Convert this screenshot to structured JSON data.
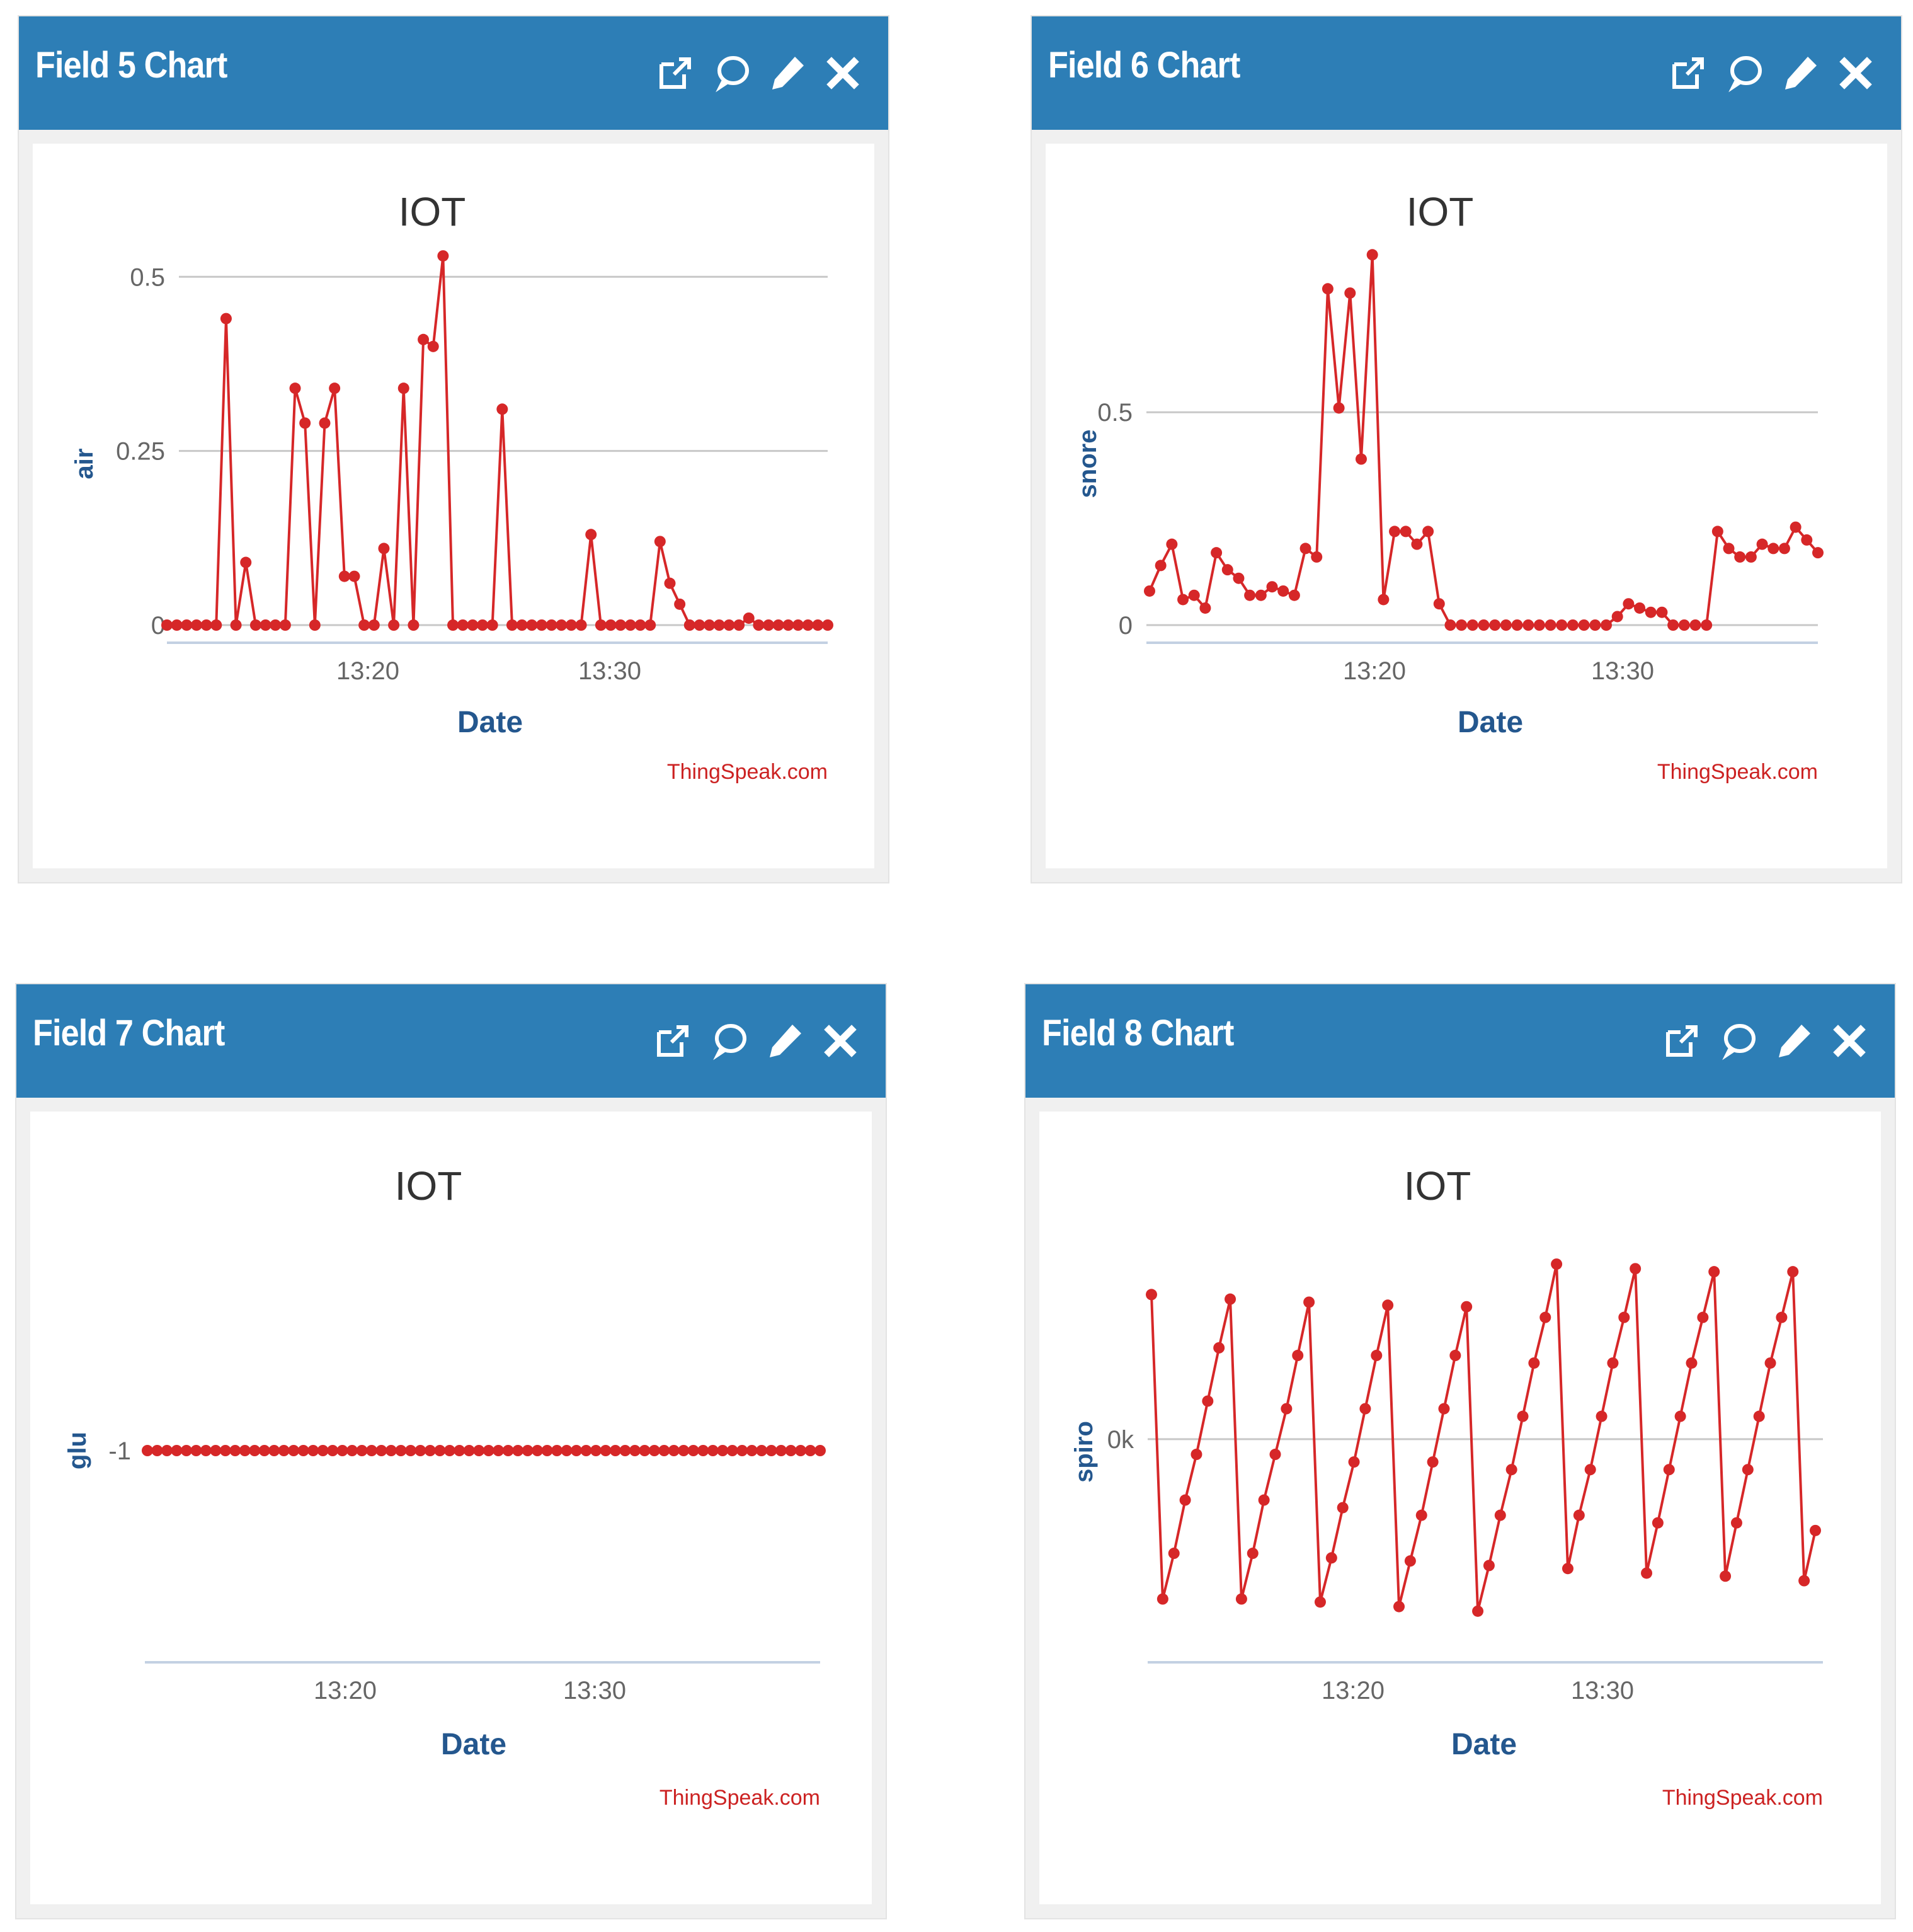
{
  "colors": {
    "header": "#2d7eb6",
    "series": "#d62728",
    "axis_label": "#24578e",
    "credit": "#cc2222"
  },
  "header_icons": [
    "external-link-icon",
    "comment-icon",
    "pencil-icon",
    "close-icon"
  ],
  "panels": [
    {
      "title": "Field 5 Chart",
      "chart_data": {
        "type": "line",
        "title": "IOT",
        "xlabel": "Date",
        "ylabel": "air",
        "credit": "ThingSpeak.com",
        "x_ticks": [
          "13:20",
          "13:30"
        ],
        "y_ticks": [
          "0",
          "0.25",
          "0.5"
        ],
        "ylim": [
          0,
          0.55
        ],
        "grid": true,
        "legend": "none",
        "series": [
          {
            "values": [
              0,
              0,
              0,
              0,
              0,
              0,
              0.44,
              0,
              0.09,
              0,
              0,
              0,
              0,
              0.34,
              0.29,
              0,
              0.29,
              0.34,
              0.07,
              0.07,
              0,
              0,
              0.11,
              0,
              0.34,
              0,
              0.41,
              0.4,
              0.53,
              0,
              0,
              0,
              0,
              0,
              0.31,
              0,
              0,
              0,
              0,
              0,
              0,
              0,
              0,
              0.13,
              0,
              0,
              0,
              0,
              0,
              0,
              0.12,
              0.06,
              0.03,
              0,
              0,
              0,
              0,
              0,
              0,
              0.01,
              0,
              0,
              0,
              0,
              0,
              0,
              0,
              0
            ]
          }
        ]
      }
    },
    {
      "title": "Field 6 Chart",
      "chart_data": {
        "type": "line",
        "title": "IOT",
        "xlabel": "Date",
        "ylabel": "snore",
        "credit": "ThingSpeak.com",
        "x_ticks": [
          "13:20",
          "13:30"
        ],
        "y_ticks": [
          "0",
          "0.5"
        ],
        "ylim": [
          0,
          0.9
        ],
        "grid": true,
        "legend": "none",
        "series": [
          {
            "values": [
              0.08,
              0.14,
              0.19,
              0.06,
              0.07,
              0.04,
              0.17,
              0.13,
              0.11,
              0.07,
              0.07,
              0.09,
              0.08,
              0.07,
              0.18,
              0.16,
              0.79,
              0.51,
              0.78,
              0.39,
              0.87,
              0.06,
              0.22,
              0.22,
              0.19,
              0.22,
              0.05,
              0,
              0,
              0,
              0,
              0,
              0,
              0,
              0,
              0,
              0,
              0,
              0,
              0,
              0,
              0,
              0.02,
              0.05,
              0.04,
              0.03,
              0.03,
              0,
              0,
              0,
              0,
              0.22,
              0.18,
              0.16,
              0.16,
              0.19,
              0.18,
              0.18,
              0.23,
              0.2,
              0.17
            ]
          }
        ]
      }
    },
    {
      "title": "Field 7 Chart",
      "chart_data": {
        "type": "line",
        "title": "IOT",
        "xlabel": "Date",
        "ylabel": "glu",
        "credit": "ThingSpeak.com",
        "x_ticks": [
          "13:20",
          "13:30"
        ],
        "y_ticks": [
          "-1"
        ],
        "ylim": [
          -2,
          0
        ],
        "grid": false,
        "legend": "none",
        "series": [
          {
            "values": [
              -1,
              -1,
              -1,
              -1,
              -1,
              -1,
              -1,
              -1,
              -1,
              -1,
              -1,
              -1,
              -1,
              -1,
              -1,
              -1,
              -1,
              -1,
              -1,
              -1,
              -1,
              -1,
              -1,
              -1,
              -1,
              -1,
              -1,
              -1,
              -1,
              -1,
              -1,
              -1,
              -1,
              -1,
              -1,
              -1,
              -1,
              -1,
              -1,
              -1,
              -1,
              -1,
              -1,
              -1,
              -1,
              -1,
              -1,
              -1,
              -1,
              -1,
              -1,
              -1,
              -1,
              -1,
              -1,
              -1,
              -1,
              -1,
              -1,
              -1,
              -1,
              -1,
              -1,
              -1,
              -1,
              -1,
              -1,
              -1,
              -1,
              -1
            ]
          }
        ]
      }
    },
    {
      "title": "Field 8 Chart",
      "chart_data": {
        "type": "line",
        "title": "IOT",
        "xlabel": "Date",
        "ylabel": "spiro",
        "credit": "ThingSpeak.com",
        "x_ticks": [
          "13:20",
          "13:30"
        ],
        "y_ticks": [
          "0k"
        ],
        "ylim": [
          -1.35,
          1.2
        ],
        "grid": true,
        "legend": "none",
        "series": [
          {
            "values": [
              0.95,
              -1.05,
              -0.75,
              -0.4,
              -0.1,
              0.25,
              0.6,
              0.92,
              -1.05,
              -0.75,
              -0.4,
              -0.1,
              0.2,
              0.55,
              0.9,
              -1.07,
              -0.78,
              -0.45,
              -0.15,
              0.2,
              0.55,
              0.88,
              -1.1,
              -0.8,
              -0.5,
              -0.15,
              0.2,
              0.55,
              0.87,
              -1.13,
              -0.83,
              -0.5,
              -0.2,
              0.15,
              0.5,
              0.8,
              1.15,
              -0.85,
              -0.5,
              -0.2,
              0.15,
              0.5,
              0.8,
              1.12,
              -0.88,
              -0.55,
              -0.2,
              0.15,
              0.5,
              0.8,
              1.1,
              -0.9,
              -0.55,
              -0.2,
              0.15,
              0.5,
              0.8,
              1.1,
              -0.93,
              -0.6
            ]
          }
        ]
      }
    }
  ]
}
